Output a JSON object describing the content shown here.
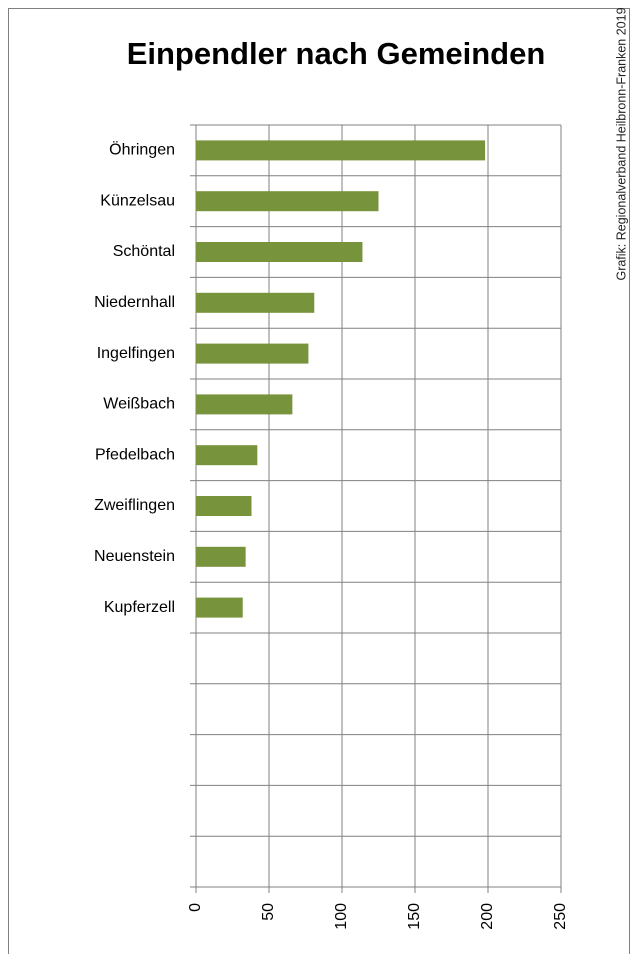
{
  "chart_data": {
    "type": "hbar",
    "title": "Einpendler nach Gemeinden",
    "source": "Grafik: Regionalverband Heilbronn-Franken 2019",
    "categories": [
      "Öhringen",
      "Künzelsau",
      "Schöntal",
      "Niedernhall",
      "Ingelfingen",
      "Weißbach",
      "Pfedelbach",
      "Zweiflingen",
      "Neuenstein",
      "Kupferzell",
      null,
      null,
      null,
      null,
      null
    ],
    "values": [
      198,
      125,
      114,
      81,
      77,
      66,
      42,
      38,
      34,
      32,
      null,
      null,
      null,
      null,
      null
    ],
    "color": "#77933c",
    "xlim": [
      0,
      250
    ],
    "xticks": [
      0,
      50,
      100,
      150,
      200,
      250
    ],
    "grid": true
  }
}
